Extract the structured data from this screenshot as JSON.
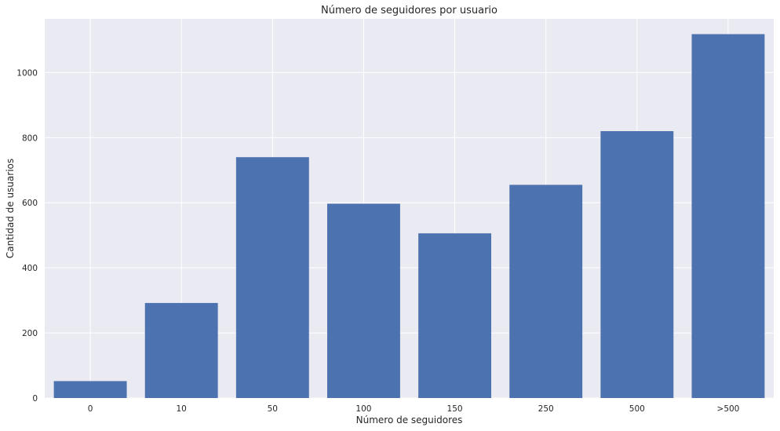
{
  "chart_data": {
    "type": "bar",
    "title": "Número de seguidores por usuario",
    "xlabel": "Número de seguidores",
    "ylabel": "Cantidad de usuarios",
    "categories": [
      "0",
      "10",
      "50",
      "100",
      "150",
      "250",
      "500",
      ">500"
    ],
    "values": [
      52,
      292,
      740,
      597,
      506,
      655,
      820,
      1118
    ],
    "ylim": [
      0,
      1165
    ],
    "yticks": [
      0,
      200,
      400,
      600,
      800,
      1000
    ],
    "grid": true,
    "colors": {
      "bar": "#4c72b0",
      "plot_background": "#eaeaf2",
      "grid": "#ffffff"
    }
  }
}
